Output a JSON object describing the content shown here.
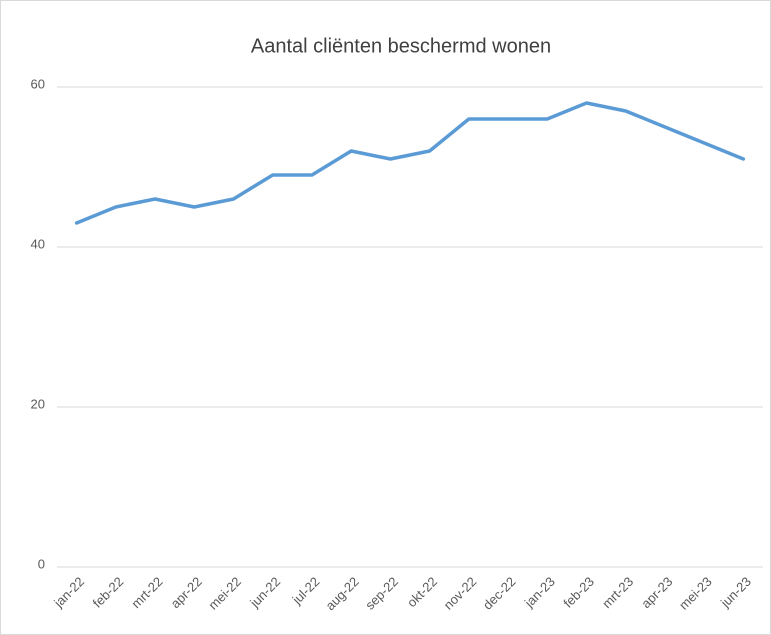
{
  "chart_data": {
    "type": "line",
    "title": "Aantal cliënten beschermd wonen",
    "categories": [
      "jan-22",
      "feb-22",
      "mrt-22",
      "apr-22",
      "mei-22",
      "jun-22",
      "jul-22",
      "aug-22",
      "sep-22",
      "okt-22",
      "nov-22",
      "dec-22",
      "jan-23",
      "feb-23",
      "mrt-23",
      "apr-23",
      "mei-23",
      "jun-23"
    ],
    "series": [
      {
        "name": "Aantal cliënten",
        "color": "#5b9bd5",
        "values": [
          43,
          45,
          46,
          45,
          46,
          49,
          49,
          52,
          51,
          52,
          56,
          56,
          56,
          58,
          57,
          55,
          53,
          51
        ]
      }
    ],
    "ylim": [
      0,
      60
    ],
    "yticks": [
      0,
      20,
      40,
      60
    ],
    "grid": true
  }
}
